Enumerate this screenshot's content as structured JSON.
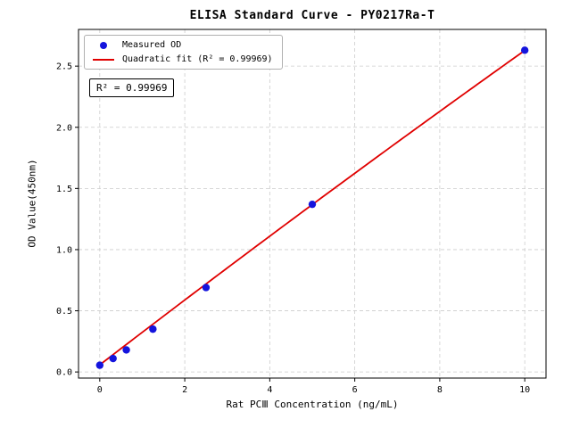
{
  "chart_data": {
    "type": "scatter",
    "title": "ELISA Standard Curve - PY0217Ra-T",
    "xlabel": "Rat PCⅢ Concentration (ng/mL)",
    "ylabel": "OD Value(450nm)",
    "xlim": [
      -0.5,
      10.5
    ],
    "ylim": [
      -0.05,
      2.8
    ],
    "xticks": [
      0,
      2,
      4,
      6,
      8,
      10
    ],
    "yticks": [
      0.0,
      0.5,
      1.0,
      1.5,
      2.0,
      2.5
    ],
    "grid": true,
    "grid_style": "dashed",
    "legend_position": "upper-left",
    "series": [
      {
        "name": "Measured OD",
        "type": "scatter",
        "color": "#1414dd",
        "x": [
          0,
          0.313,
          0.625,
          1.25,
          2.5,
          5,
          10
        ],
        "y": [
          0.055,
          0.11,
          0.18,
          0.35,
          0.69,
          1.37,
          2.63
        ]
      },
      {
        "name": "Quadratic fit (R² = 0.99969)",
        "type": "line",
        "color": "#e00000",
        "fit": {
          "a": -0.001,
          "b": 0.267,
          "c": 0.058,
          "x_range": [
            0,
            10
          ]
        }
      }
    ],
    "annotation": "R² = 0.99969",
    "r_squared": "0.99969",
    "colors": {
      "points": "#1414dd",
      "fit_line": "#e00000",
      "grid": "#cccccc",
      "frame": "#000000"
    }
  }
}
